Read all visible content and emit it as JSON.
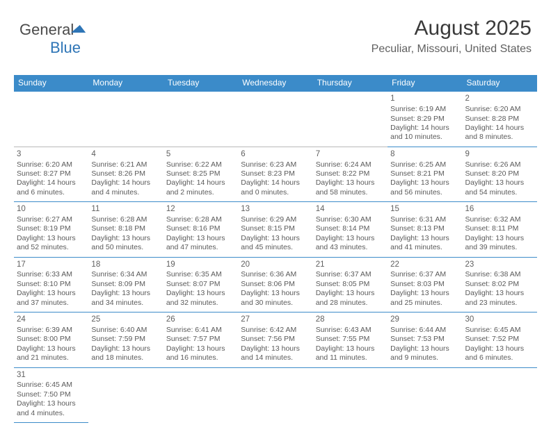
{
  "logo": {
    "part1": "General",
    "part2": "Blue"
  },
  "title": "August 2025",
  "location": "Peculiar, Missouri, United States",
  "colors": {
    "headerBg": "#3b8bc9",
    "headerText": "#ffffff",
    "text": "#5a5a5a",
    "divider": "#b9b9b9",
    "background": "#ffffff"
  },
  "typography": {
    "titleSize": 30,
    "locationSize": 16,
    "headerSize": 12,
    "bodySize": 10.5,
    "dayNumSize": 11.5
  },
  "dayHeaders": [
    "Sunday",
    "Monday",
    "Tuesday",
    "Wednesday",
    "Thursday",
    "Friday",
    "Saturday"
  ],
  "weeks": [
    [
      null,
      null,
      null,
      null,
      null,
      {
        "n": "1",
        "sr": "Sunrise: 6:19 AM",
        "ss": "Sunset: 8:29 PM",
        "d1": "Daylight: 14 hours",
        "d2": "and 10 minutes."
      },
      {
        "n": "2",
        "sr": "Sunrise: 6:20 AM",
        "ss": "Sunset: 8:28 PM",
        "d1": "Daylight: 14 hours",
        "d2": "and 8 minutes."
      }
    ],
    [
      {
        "n": "3",
        "sr": "Sunrise: 6:20 AM",
        "ss": "Sunset: 8:27 PM",
        "d1": "Daylight: 14 hours",
        "d2": "and 6 minutes."
      },
      {
        "n": "4",
        "sr": "Sunrise: 6:21 AM",
        "ss": "Sunset: 8:26 PM",
        "d1": "Daylight: 14 hours",
        "d2": "and 4 minutes."
      },
      {
        "n": "5",
        "sr": "Sunrise: 6:22 AM",
        "ss": "Sunset: 8:25 PM",
        "d1": "Daylight: 14 hours",
        "d2": "and 2 minutes."
      },
      {
        "n": "6",
        "sr": "Sunrise: 6:23 AM",
        "ss": "Sunset: 8:23 PM",
        "d1": "Daylight: 14 hours",
        "d2": "and 0 minutes."
      },
      {
        "n": "7",
        "sr": "Sunrise: 6:24 AM",
        "ss": "Sunset: 8:22 PM",
        "d1": "Daylight: 13 hours",
        "d2": "and 58 minutes."
      },
      {
        "n": "8",
        "sr": "Sunrise: 6:25 AM",
        "ss": "Sunset: 8:21 PM",
        "d1": "Daylight: 13 hours",
        "d2": "and 56 minutes."
      },
      {
        "n": "9",
        "sr": "Sunrise: 6:26 AM",
        "ss": "Sunset: 8:20 PM",
        "d1": "Daylight: 13 hours",
        "d2": "and 54 minutes."
      }
    ],
    [
      {
        "n": "10",
        "sr": "Sunrise: 6:27 AM",
        "ss": "Sunset: 8:19 PM",
        "d1": "Daylight: 13 hours",
        "d2": "and 52 minutes."
      },
      {
        "n": "11",
        "sr": "Sunrise: 6:28 AM",
        "ss": "Sunset: 8:18 PM",
        "d1": "Daylight: 13 hours",
        "d2": "and 50 minutes."
      },
      {
        "n": "12",
        "sr": "Sunrise: 6:28 AM",
        "ss": "Sunset: 8:16 PM",
        "d1": "Daylight: 13 hours",
        "d2": "and 47 minutes."
      },
      {
        "n": "13",
        "sr": "Sunrise: 6:29 AM",
        "ss": "Sunset: 8:15 PM",
        "d1": "Daylight: 13 hours",
        "d2": "and 45 minutes."
      },
      {
        "n": "14",
        "sr": "Sunrise: 6:30 AM",
        "ss": "Sunset: 8:14 PM",
        "d1": "Daylight: 13 hours",
        "d2": "and 43 minutes."
      },
      {
        "n": "15",
        "sr": "Sunrise: 6:31 AM",
        "ss": "Sunset: 8:13 PM",
        "d1": "Daylight: 13 hours",
        "d2": "and 41 minutes."
      },
      {
        "n": "16",
        "sr": "Sunrise: 6:32 AM",
        "ss": "Sunset: 8:11 PM",
        "d1": "Daylight: 13 hours",
        "d2": "and 39 minutes."
      }
    ],
    [
      {
        "n": "17",
        "sr": "Sunrise: 6:33 AM",
        "ss": "Sunset: 8:10 PM",
        "d1": "Daylight: 13 hours",
        "d2": "and 37 minutes."
      },
      {
        "n": "18",
        "sr": "Sunrise: 6:34 AM",
        "ss": "Sunset: 8:09 PM",
        "d1": "Daylight: 13 hours",
        "d2": "and 34 minutes."
      },
      {
        "n": "19",
        "sr": "Sunrise: 6:35 AM",
        "ss": "Sunset: 8:07 PM",
        "d1": "Daylight: 13 hours",
        "d2": "and 32 minutes."
      },
      {
        "n": "20",
        "sr": "Sunrise: 6:36 AM",
        "ss": "Sunset: 8:06 PM",
        "d1": "Daylight: 13 hours",
        "d2": "and 30 minutes."
      },
      {
        "n": "21",
        "sr": "Sunrise: 6:37 AM",
        "ss": "Sunset: 8:05 PM",
        "d1": "Daylight: 13 hours",
        "d2": "and 28 minutes."
      },
      {
        "n": "22",
        "sr": "Sunrise: 6:37 AM",
        "ss": "Sunset: 8:03 PM",
        "d1": "Daylight: 13 hours",
        "d2": "and 25 minutes."
      },
      {
        "n": "23",
        "sr": "Sunrise: 6:38 AM",
        "ss": "Sunset: 8:02 PM",
        "d1": "Daylight: 13 hours",
        "d2": "and 23 minutes."
      }
    ],
    [
      {
        "n": "24",
        "sr": "Sunrise: 6:39 AM",
        "ss": "Sunset: 8:00 PM",
        "d1": "Daylight: 13 hours",
        "d2": "and 21 minutes."
      },
      {
        "n": "25",
        "sr": "Sunrise: 6:40 AM",
        "ss": "Sunset: 7:59 PM",
        "d1": "Daylight: 13 hours",
        "d2": "and 18 minutes."
      },
      {
        "n": "26",
        "sr": "Sunrise: 6:41 AM",
        "ss": "Sunset: 7:57 PM",
        "d1": "Daylight: 13 hours",
        "d2": "and 16 minutes."
      },
      {
        "n": "27",
        "sr": "Sunrise: 6:42 AM",
        "ss": "Sunset: 7:56 PM",
        "d1": "Daylight: 13 hours",
        "d2": "and 14 minutes."
      },
      {
        "n": "28",
        "sr": "Sunrise: 6:43 AM",
        "ss": "Sunset: 7:55 PM",
        "d1": "Daylight: 13 hours",
        "d2": "and 11 minutes."
      },
      {
        "n": "29",
        "sr": "Sunrise: 6:44 AM",
        "ss": "Sunset: 7:53 PM",
        "d1": "Daylight: 13 hours",
        "d2": "and 9 minutes."
      },
      {
        "n": "30",
        "sr": "Sunrise: 6:45 AM",
        "ss": "Sunset: 7:52 PM",
        "d1": "Daylight: 13 hours",
        "d2": "and 6 minutes."
      }
    ],
    [
      {
        "n": "31",
        "sr": "Sunrise: 6:45 AM",
        "ss": "Sunset: 7:50 PM",
        "d1": "Daylight: 13 hours",
        "d2": "and 4 minutes."
      },
      null,
      null,
      null,
      null,
      null,
      null
    ]
  ]
}
